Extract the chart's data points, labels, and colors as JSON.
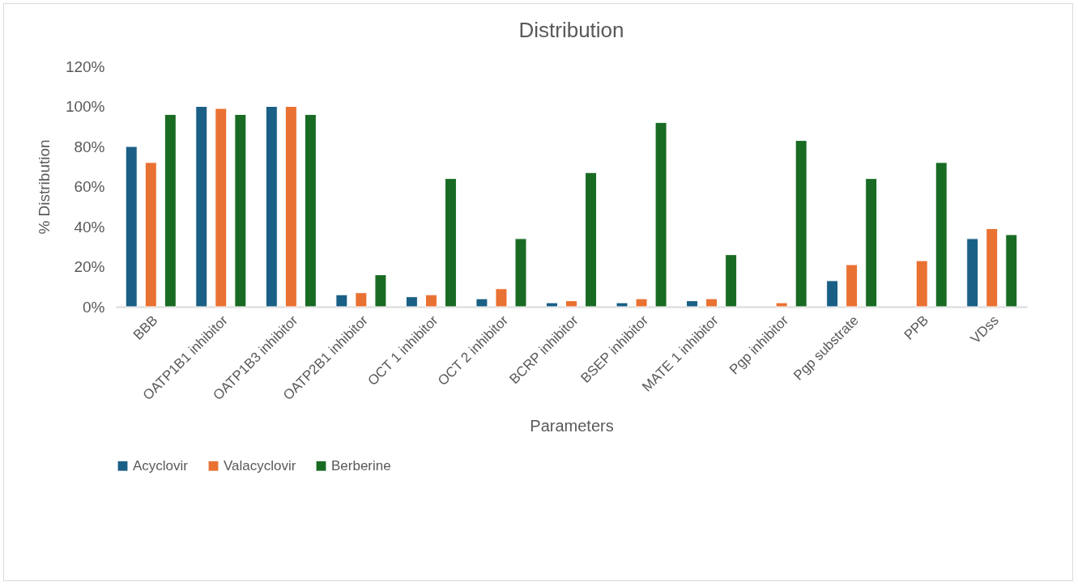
{
  "chart_data": {
    "type": "bar",
    "title": "Distribution",
    "xlabel": "Parameters",
    "ylabel": "% Distribution",
    "categories": [
      "BBB",
      "OATP1B1 inhibitor",
      "OATP1B3 inhibitor",
      "OATP2B1 inhibitor",
      "OCT 1 inhibitor",
      "OCT 2 inhibitor",
      "BCRP inhibitor",
      "BSEP inhibitor",
      "MATE 1 inhibitor",
      "Pgp inhibitor",
      "Pgp substrate",
      "PPB",
      "VDss"
    ],
    "series": [
      {
        "name": "Acyclovir",
        "color": "#1a5f85",
        "values": [
          80,
          100,
          100,
          6,
          5,
          4,
          2,
          2,
          3,
          null,
          13,
          null,
          34
        ]
      },
      {
        "name": "Valacyclovir",
        "color": "#e97132",
        "values": [
          72,
          99,
          100,
          7,
          6,
          9,
          3,
          4,
          4,
          2,
          21,
          23,
          39
        ]
      },
      {
        "name": "Berberine",
        "color": "#196b24",
        "values": [
          96,
          96,
          96,
          16,
          64,
          34,
          67,
          92,
          26,
          83,
          64,
          72,
          36
        ]
      }
    ],
    "ylim": [
      0,
      120
    ],
    "yticks": [
      {
        "value": 0,
        "label": "0%"
      },
      {
        "value": 20,
        "label": "20%"
      },
      {
        "value": 40,
        "label": "40%"
      },
      {
        "value": 60,
        "label": "60%"
      },
      {
        "value": 80,
        "label": "80%"
      },
      {
        "value": 100,
        "label": "100%"
      },
      {
        "value": 120,
        "label": "120%"
      }
    ],
    "grid": false,
    "legend": "bottom"
  }
}
